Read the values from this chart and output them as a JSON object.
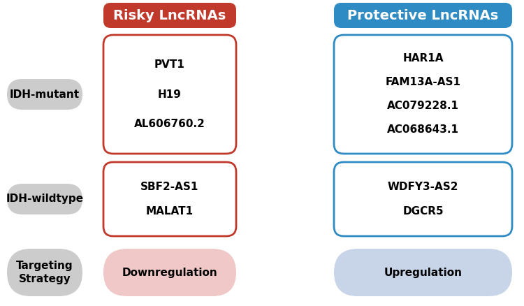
{
  "background_color": "#ffffff",
  "header_risky": "Risky LncRNAs",
  "header_protective": "Protective LncRNAs",
  "header_risky_bg": "#c0392b",
  "header_protective_bg": "#2e8bc4",
  "header_text_color": "#ffffff",
  "label_idh_mutant": "IDH-mutant",
  "label_idh_wildtype": "IDH-wildtype",
  "label_targeting": "Targeting\nStrategy",
  "label_downreg": "Downregulation",
  "label_upreg": "Upregulation",
  "label_bg": "#cccccc",
  "label_text_color": "#000000",
  "risky_mutant": [
    "AL606760.2",
    "H19",
    "PVT1"
  ],
  "protective_mutant": [
    "AC068643.1",
    "AC079228.1",
    "FAM13A-AS1",
    "HAR1A"
  ],
  "risky_wildtype": [
    "MALAT1",
    "SBF2-AS1"
  ],
  "protective_wildtype": [
    "DGCR5",
    "WDFY3-AS2"
  ],
  "box_risky_border": "#c0392b",
  "box_protective_border": "#2e8bc4",
  "box_bg": "#ffffff",
  "downreg_bg": "#f0c8c8",
  "upreg_bg": "#c8d4e8",
  "gene_text_color": "#000000",
  "strategy_text_color": "#000000",
  "font_size_header": 14,
  "font_size_label": 11,
  "font_size_gene": 11,
  "font_size_strategy": 11
}
